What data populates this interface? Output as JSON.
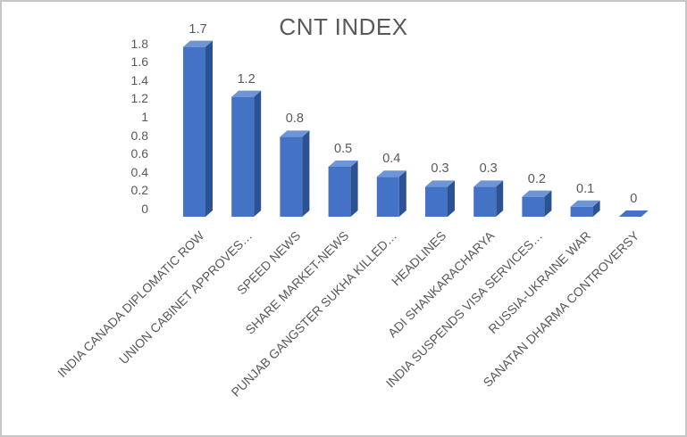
{
  "chart_data": {
    "type": "bar",
    "style_3d": true,
    "title": "CNT INDEX",
    "categories": [
      "INDIA CANADA DIPLOMATIC ROW",
      "UNION CABINET APPROVES…",
      "SPEED NEWS",
      "SHARE MARKET-NEWS",
      "PUNJAB GANGSTER SUKHA KILLED…",
      "HEADLINES",
      "ADI SHANKARACHARYA",
      "INDIA SUSPENDS VISA SERVICES…",
      "RUSSIA-UKRAINE WAR",
      "SANATAN DHARMA CONTROVERSY"
    ],
    "values": [
      1.7,
      1.2,
      0.8,
      0.5,
      0.4,
      0.3,
      0.3,
      0.2,
      0.1,
      0
    ],
    "data_labels": [
      "1.7",
      "1.2",
      "0.8",
      "0.5",
      "0.4",
      "0.3",
      "0.3",
      "0.2",
      "0.1",
      "0"
    ],
    "y_ticks": [
      1.8,
      1.6,
      1.4,
      1.2,
      1,
      0.8,
      0.6,
      0.4,
      0.2,
      0
    ],
    "y_tick_labels": [
      "1.8",
      "1.6",
      "1.4",
      "1.2",
      "1",
      "0.8",
      "0.6",
      "0.4",
      "0.2",
      "0"
    ],
    "ylim": [
      0,
      1.8
    ],
    "grid": false,
    "legend": false,
    "xlabel": "",
    "ylabel": "",
    "colors": {
      "bar_front": "#4472C4",
      "bar_top": "#6E96D7",
      "bar_side": "#2D5291",
      "title_text": "#595959",
      "label_text": "#595959",
      "background": "#FFFFFF",
      "border": "#C6C6C6"
    }
  }
}
